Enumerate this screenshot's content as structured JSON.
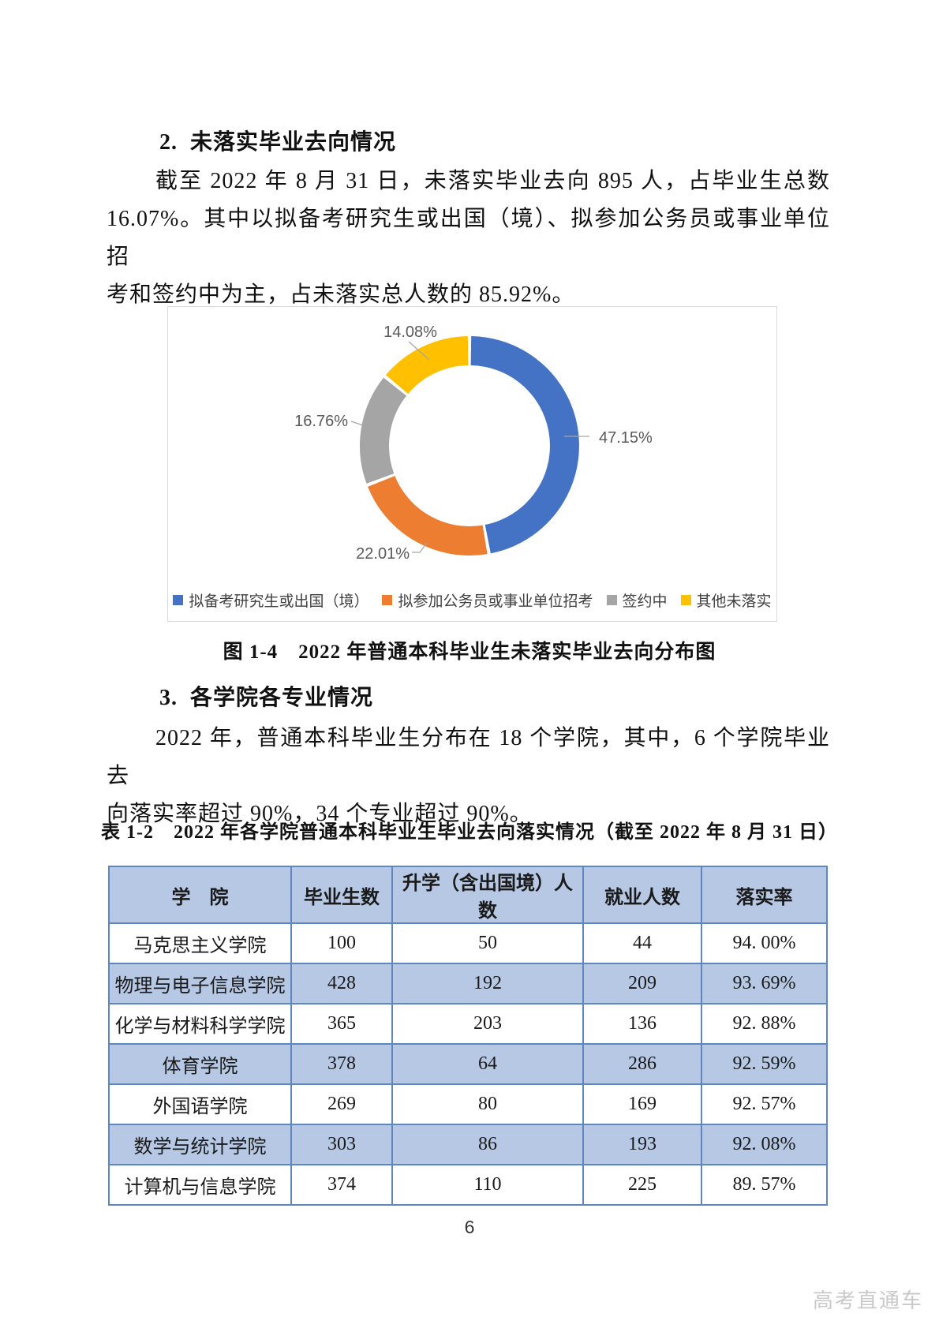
{
  "section2": {
    "heading": "2.  未落实毕业去向情况",
    "paragraph_lines": [
      "截至 2022 年 8 月 31 日，未落实毕业去向 895 人，占毕业生总数",
      "16.07%。其中以拟备考研究生或出国（境）、拟参加公务员或事业单位招",
      "考和签约中为主，占未落实总人数的 85.92%。"
    ]
  },
  "figure": {
    "caption": "图 1-4　2022 年普通本科毕业生未落实毕业去向分布图"
  },
  "chart_data": {
    "type": "pie",
    "subtype": "donut",
    "title": "",
    "labels": [
      "拟备考研究生或出国（境）",
      "拟参加公务员或事业单位招考",
      "签约中",
      "其他未落实"
    ],
    "values": [
      47.15,
      22.01,
      16.76,
      14.08
    ],
    "value_labels": [
      "47.15%",
      "22.01%",
      "16.76%",
      "14.08%"
    ],
    "colors": [
      "#4472C4",
      "#ED7D31",
      "#A5A5A5",
      "#FFC000"
    ],
    "legend_position": "bottom",
    "start_angle_deg": 0,
    "direction": "clockwise",
    "label_color": "#595959",
    "leader_line_color": "#a6a6a6"
  },
  "section3": {
    "heading": "3.  各学院各专业情况",
    "paragraph_lines": [
      "2022 年，普通本科毕业生分布在 18 个学院，其中，6 个学院毕业去",
      "向落实率超过 90%，34 个专业超过 90%。"
    ]
  },
  "table": {
    "caption": "表 1-2　2022 年各学院普通本科毕业生毕业去向落实情况（截至 2022 年 8 月 31 日）",
    "headers": [
      "学　院",
      "毕业生数",
      "升学（含出国境）人数",
      "就业人数",
      "落实率"
    ],
    "rows": [
      [
        "马克思主义学院",
        "100",
        "50",
        "44",
        "94. 00%"
      ],
      [
        "物理与电子信息学院",
        "428",
        "192",
        "209",
        "93. 69%"
      ],
      [
        "化学与材料科学学院",
        "365",
        "203",
        "136",
        "92. 88%"
      ],
      [
        "体育学院",
        "378",
        "64",
        "286",
        "92. 59%"
      ],
      [
        "外国语学院",
        "269",
        "80",
        "169",
        "92. 57%"
      ],
      [
        "数学与统计学院",
        "303",
        "86",
        "193",
        "92. 08%"
      ],
      [
        "计算机与信息学院",
        "374",
        "110",
        "225",
        "89. 57%"
      ]
    ]
  },
  "footer": {
    "page_number": "6",
    "watermark": "高考直通车"
  }
}
